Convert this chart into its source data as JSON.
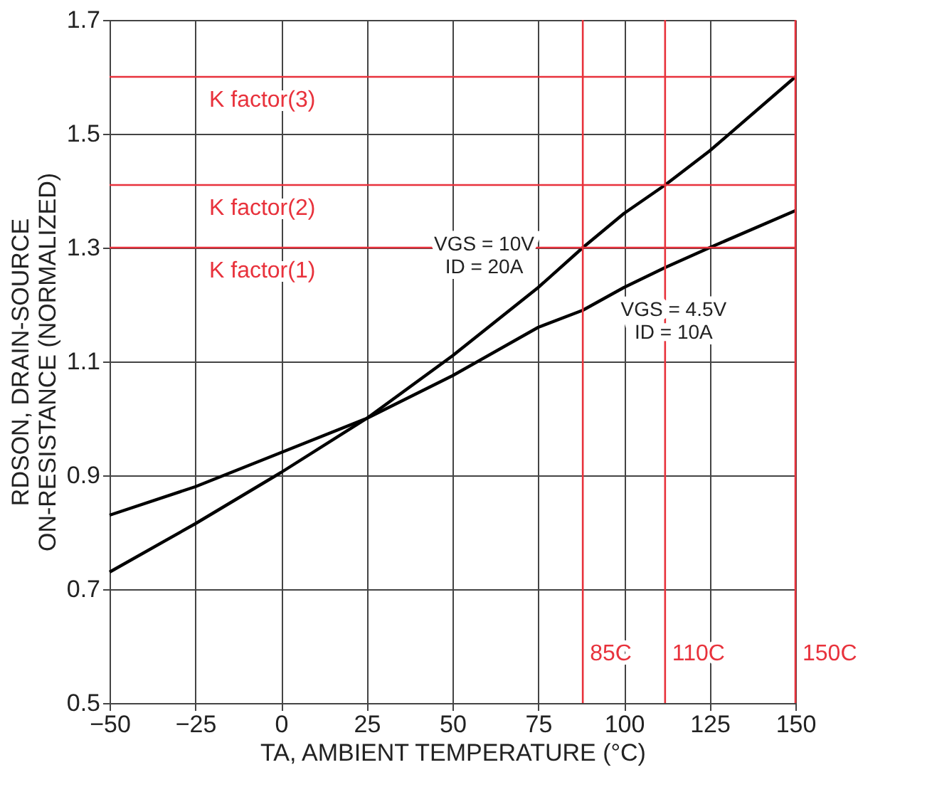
{
  "chart_data": {
    "type": "line",
    "xlabel": "TA, AMBIENT TEMPERATURE (°C)",
    "ylabel": "RDSON, DRAIN-SOURCE\nON-RESISTANCE (NORMALIZED)",
    "x": [
      -50,
      -25,
      0,
      25,
      50,
      75,
      88,
      100,
      112,
      125,
      150
    ],
    "series": [
      {
        "name": "VGS = 10V\nID = 20A",
        "color": "#000000",
        "values": [
          0.73,
          0.815,
          0.905,
          1.0,
          1.11,
          1.23,
          1.3,
          1.36,
          1.41,
          1.47,
          1.6
        ]
      },
      {
        "name": "VGS = 4.5V\nID = 10A",
        "color": "#000000",
        "values": [
          0.83,
          0.88,
          0.94,
          1.0,
          1.075,
          1.16,
          1.19,
          1.23,
          1.265,
          1.3,
          1.365
        ]
      }
    ],
    "xlim": [
      -50,
      150
    ],
    "xticks": [
      -50,
      -25,
      0,
      25,
      50,
      75,
      100,
      125,
      150
    ],
    "ylim": [
      0.5,
      1.7
    ],
    "yticks": [
      0.5,
      0.7,
      0.9,
      1.1,
      1.3,
      1.5,
      1.7
    ],
    "grid": true,
    "marker": "none",
    "line_style": "solid",
    "ref_lines": [
      {
        "axis": "y",
        "value": 1.6,
        "label": "K factor(3)",
        "color": "#e8323c"
      },
      {
        "axis": "y",
        "value": 1.41,
        "label": "K factor(2)",
        "color": "#e8323c"
      },
      {
        "axis": "y",
        "value": 1.3,
        "label": "K factor(1)",
        "color": "#e8323c"
      },
      {
        "axis": "x",
        "value": 88,
        "label": "85C",
        "color": "#e8323c"
      },
      {
        "axis": "x",
        "value": 112,
        "label": "110C",
        "color": "#e8323c"
      },
      {
        "axis": "x",
        "value": 150,
        "label": "150C",
        "color": "#e8323c"
      }
    ]
  }
}
